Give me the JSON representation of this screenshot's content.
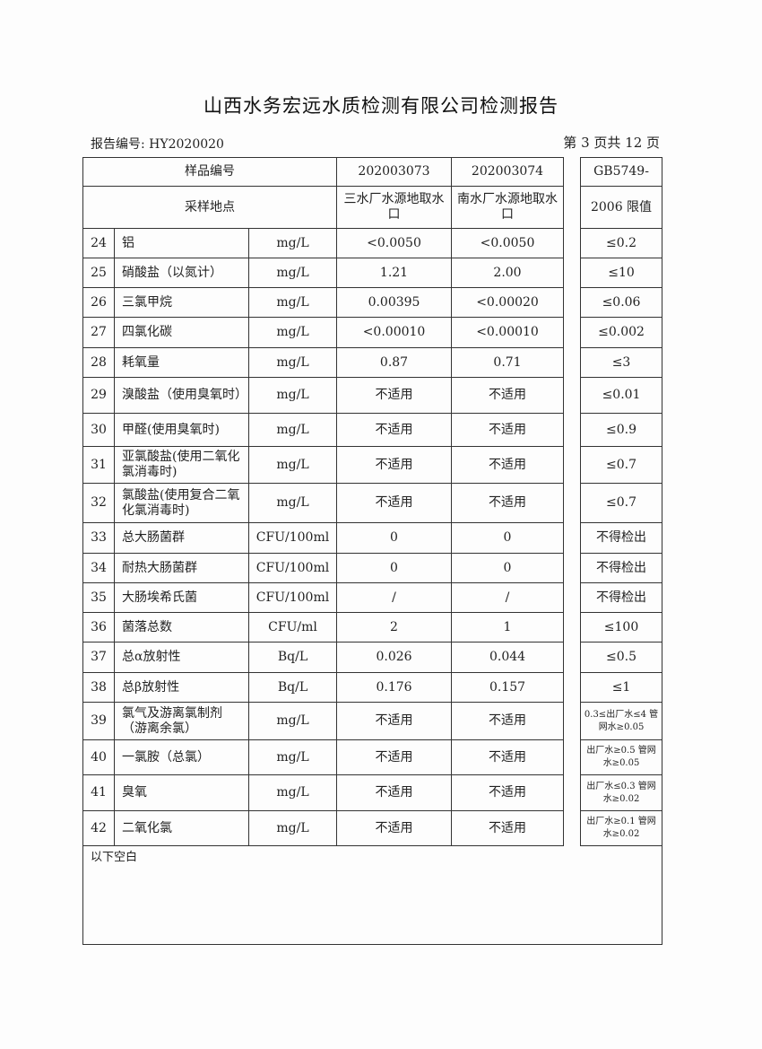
{
  "title": "山西水务宏远水质检测有限公司检测报告",
  "report_no": "报告编号: HY2020020",
  "page_info": "第 3 页共 12 页",
  "header": {
    "sample_label": "样品编号",
    "sample1": "202003073",
    "sample2": "202003074",
    "site_label": "采样地点",
    "site1": "三水厂水源地取水口",
    "site2": "南水厂水源地取水口",
    "std1": "GB5749-",
    "std2": "2006 限值"
  },
  "rows": [
    {
      "no": "24",
      "name": "铝",
      "unit": "mg/L",
      "v1": "<0.0050",
      "v2": "<0.0050",
      "limit": "≤0.2"
    },
    {
      "no": "25",
      "name": "硝酸盐（以氮计）",
      "unit": "mg/L",
      "v1": "1.21",
      "v2": "2.00",
      "limit": "≤10"
    },
    {
      "no": "26",
      "name": "三氯甲烷",
      "unit": "mg/L",
      "v1": "0.00395",
      "v2": "<0.00020",
      "limit": "≤0.06"
    },
    {
      "no": "27",
      "name": "四氯化碳",
      "unit": "mg/L",
      "v1": "<0.00010",
      "v2": "<0.00010",
      "limit": "≤0.002"
    },
    {
      "no": "28",
      "name": "耗氧量",
      "unit": "mg/L",
      "v1": "0.87",
      "v2": "0.71",
      "limit": "≤3"
    },
    {
      "no": "29",
      "name": "溴酸盐（使用臭氧时）",
      "unit": "mg/L",
      "v1": "不适用",
      "v2": "不适用",
      "limit": "≤0.01"
    },
    {
      "no": "30",
      "name": "甲醛(使用臭氧时)",
      "unit": "mg/L",
      "v1": "不适用",
      "v2": "不适用",
      "limit": "≤0.9"
    },
    {
      "no": "31",
      "name": "亚氯酸盐(使用二氧化氯消毒时)",
      "unit": "mg/L",
      "v1": "不适用",
      "v2": "不适用",
      "limit": "≤0.7"
    },
    {
      "no": "32",
      "name": "氯酸盐(使用复合二氧化氯消毒时)",
      "unit": "mg/L",
      "v1": "不适用",
      "v2": "不适用",
      "limit": "≤0.7"
    },
    {
      "no": "33",
      "name": "总大肠菌群",
      "unit": "CFU/100ml",
      "v1": "0",
      "v2": "0",
      "limit": "不得检出"
    },
    {
      "no": "34",
      "name": "耐热大肠菌群",
      "unit": "CFU/100ml",
      "v1": "0",
      "v2": "0",
      "limit": "不得检出"
    },
    {
      "no": "35",
      "name": "大肠埃希氏菌",
      "unit": "CFU/100ml",
      "v1": "/",
      "v2": "/",
      "limit": "不得检出"
    },
    {
      "no": "36",
      "name": "菌落总数",
      "unit": "CFU/ml",
      "v1": "2",
      "v2": "1",
      "limit": "≤100"
    },
    {
      "no": "37",
      "name": "总α放射性",
      "unit": "Bq/L",
      "v1": "0.026",
      "v2": "0.044",
      "limit": "≤0.5"
    },
    {
      "no": "38",
      "name": "总β放射性",
      "unit": "Bq/L",
      "v1": "0.176",
      "v2": "0.157",
      "limit": "≤1"
    },
    {
      "no": "39",
      "name": "氯气及游离氯制剂（游离余氯）",
      "unit": "mg/L",
      "v1": "不适用",
      "v2": "不适用",
      "limit": "0.3≤出厂水≤4 管网水≥0.05",
      "small": true
    },
    {
      "no": "40",
      "name": "一氯胺（总氯）",
      "unit": "mg/L",
      "v1": "不适用",
      "v2": "不适用",
      "limit": "出厂水≥0.5 管网水≥0.05",
      "small": true
    },
    {
      "no": "41",
      "name": "臭氧",
      "unit": "mg/L",
      "v1": "不适用",
      "v2": "不适用",
      "limit": "出厂水≤0.3 管网水≥0.02",
      "small": true
    },
    {
      "no": "42",
      "name": "二氧化氯",
      "unit": "mg/L",
      "v1": "不适用",
      "v2": "不适用",
      "limit": "出厂水≥0.1 管网水≥0.02",
      "small": true
    }
  ],
  "footer_note": "以下空白"
}
